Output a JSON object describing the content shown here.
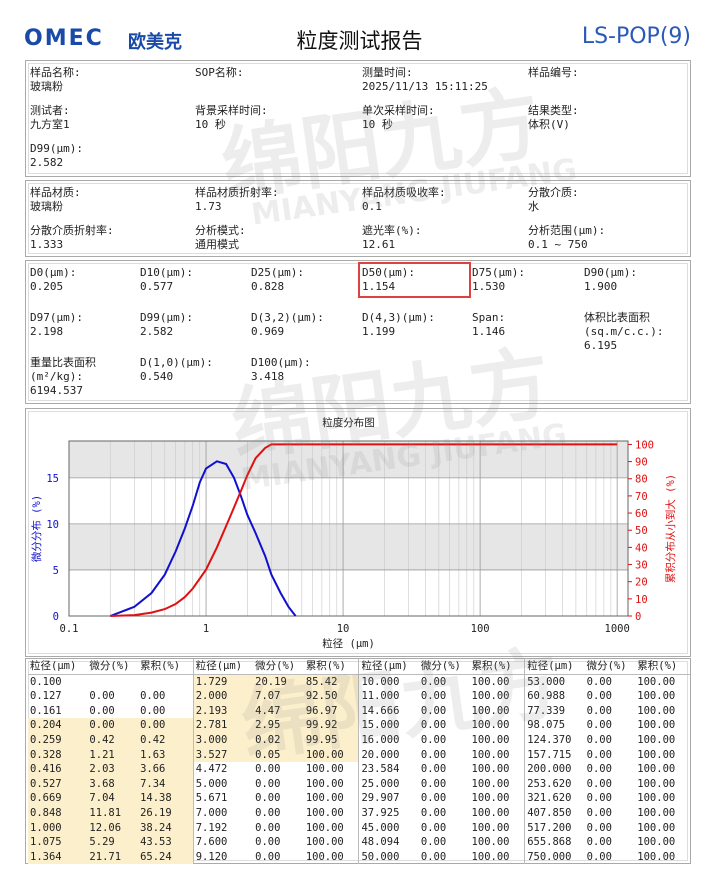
{
  "header": {
    "logo": "OMEC",
    "brand": "欧美克",
    "title": "粒度测试报告",
    "code": "LS-POP(9)"
  },
  "sections": [
    {
      "columns": 4,
      "rows": [
        [
          {
            "label": "样品名称:",
            "value": "玻璃粉"
          },
          {
            "label": "SOP名称:"
          },
          {
            "label": "测量时间:",
            "value": "2025/11/13 15:11:25"
          },
          {
            "label": "样品编号:"
          }
        ],
        [
          {
            "label": "测试者:",
            "value": "九方室1"
          },
          {
            "label": "背景采样时间:",
            "value": "10 秒"
          },
          {
            "label": "单次采样时间:",
            "value": "10 秒"
          },
          {
            "label": "结果类型:",
            "value": "体积(V)"
          }
        ],
        [
          {
            "label": "D99(μm):",
            "value": "2.582"
          }
        ]
      ]
    },
    {
      "columns": 4,
      "rows": [
        [
          {
            "label": "样品材质:",
            "value": "玻璃粉"
          },
          {
            "label": "样品材质折射率:",
            "value": "1.73"
          },
          {
            "label": "样品材质吸收率:",
            "value": "0.1"
          },
          {
            "label": "分散介质:",
            "value": "水"
          }
        ],
        [
          {
            "label": "分散介质折射率:",
            "value": "1.333"
          },
          {
            "label": "分析模式:",
            "value": "通用模式"
          },
          {
            "label": "遮光率(%):",
            "value": "12.61"
          },
          {
            "label": "分析范围(μm):",
            "value": "0.1 ~ 750"
          }
        ]
      ]
    },
    {
      "columns": 6,
      "rows": [
        [
          {
            "label": "D0(μm):",
            "value": "0.205"
          },
          {
            "label": "D10(μm):",
            "value": "0.577"
          },
          {
            "label": "D25(μm):",
            "value": "0.828"
          },
          {
            "label": "D50(μm):",
            "value": "1.154"
          },
          {
            "label": "D75(μm):",
            "value": "1.530"
          },
          {
            "label": "D90(μm):",
            "value": "1.900"
          }
        ],
        [
          {
            "label": "D97(μm):",
            "value": "2.198"
          },
          {
            "label": "D99(μm):",
            "value": "2.582"
          },
          {
            "label": "D(3,2)(μm):",
            "value": "0.969"
          },
          {
            "label": "D(4,3)(μm):",
            "value": "1.199"
          },
          {
            "label": "Span:",
            "value": "1.146"
          },
          {
            "label": "体积比表面积(sq.m/c.c.):",
            "value": "6.195"
          }
        ],
        [
          {
            "label": "重量比表面积(m²/kg):",
            "value": "6194.537"
          },
          {
            "label": "D(1,0)(μm):",
            "value": "0.540"
          },
          {
            "label": "D100(μm):",
            "value": "3.418"
          }
        ]
      ]
    }
  ],
  "chart_data": {
    "type": "line",
    "title": "粒度分布图",
    "xlabel": "粒径 (μm)",
    "ylabel": "微分分布 (%)",
    "y2label": "累积分布从小到大 (%)",
    "xlog": true,
    "xlim": [
      0.1,
      1200
    ],
    "xticks": [
      0.1,
      1,
      10,
      100,
      1000
    ],
    "ylim": [
      0,
      19
    ],
    "yticks": [
      0,
      5,
      10,
      15
    ],
    "y2lim": [
      0,
      102
    ],
    "y2ticks": [
      0,
      10,
      20,
      30,
      40,
      50,
      60,
      70,
      80,
      90,
      100
    ],
    "grid": true,
    "series": [
      {
        "name": "微分分布",
        "color": "#1010d0",
        "axis": "y",
        "x": [
          0.2,
          0.3,
          0.4,
          0.5,
          0.6,
          0.7,
          0.8,
          0.9,
          1.0,
          1.2,
          1.4,
          1.6,
          1.8,
          2.0,
          2.3,
          2.7,
          3.0,
          3.5,
          4.0,
          4.5
        ],
        "values": [
          0,
          1,
          2.5,
          4.5,
          7,
          9.5,
          12,
          14.5,
          16,
          16.8,
          16.5,
          15,
          13,
          11,
          9,
          6.5,
          4.5,
          2.5,
          1,
          0
        ]
      },
      {
        "name": "累积分布",
        "color": "#e01010",
        "axis": "y2",
        "x": [
          0.2,
          0.3,
          0.4,
          0.5,
          0.6,
          0.7,
          0.8,
          1.0,
          1.2,
          1.5,
          1.8,
          2.0,
          2.3,
          2.7,
          3.0,
          1000
        ],
        "values": [
          0,
          0.5,
          2,
          4,
          7,
          11,
          16,
          27,
          40,
          58,
          73,
          82,
          92,
          98,
          100,
          100
        ]
      }
    ]
  },
  "table": {
    "headers": [
      "粒径(μm)",
      "微分(%)",
      "累积(%)"
    ],
    "groups": [
      [
        [
          "0.100"
        ],
        [
          "0.127",
          "0.00",
          "0.00"
        ],
        [
          "0.161",
          "0.00",
          "0.00"
        ],
        [
          "0.204",
          "0.00",
          "0.00"
        ],
        [
          "0.259",
          "0.42",
          "0.42"
        ],
        [
          "0.328",
          "1.21",
          "1.63"
        ],
        [
          "0.416",
          "2.03",
          "3.66"
        ],
        [
          "0.527",
          "3.68",
          "7.34"
        ],
        [
          "0.669",
          "7.04",
          "14.38"
        ],
        [
          "0.848",
          "11.81",
          "26.19"
        ],
        [
          "1.000",
          "12.06",
          "38.24"
        ],
        [
          "1.075",
          "5.29",
          "43.53"
        ],
        [
          "1.364",
          "21.71",
          "65.24"
        ]
      ],
      [
        [
          "1.729",
          "20.19",
          "85.42"
        ],
        [
          "2.000",
          "7.07",
          "92.50"
        ],
        [
          "2.193",
          "4.47",
          "96.97"
        ],
        [
          "2.781",
          "2.95",
          "99.92"
        ],
        [
          "3.000",
          "0.02",
          "99.95"
        ],
        [
          "3.527",
          "0.05",
          "100.00"
        ],
        [
          "4.472",
          "0.00",
          "100.00"
        ],
        [
          "5.000",
          "0.00",
          "100.00"
        ],
        [
          "5.671",
          "0.00",
          "100.00"
        ],
        [
          "7.000",
          "0.00",
          "100.00"
        ],
        [
          "7.192",
          "0.00",
          "100.00"
        ],
        [
          "7.600",
          "0.00",
          "100.00"
        ],
        [
          "9.120",
          "0.00",
          "100.00"
        ]
      ],
      [
        [
          "10.000",
          "0.00",
          "100.00"
        ],
        [
          "11.000",
          "0.00",
          "100.00"
        ],
        [
          "14.666",
          "0.00",
          "100.00"
        ],
        [
          "15.000",
          "0.00",
          "100.00"
        ],
        [
          "16.000",
          "0.00",
          "100.00"
        ],
        [
          "20.000",
          "0.00",
          "100.00"
        ],
        [
          "23.584",
          "0.00",
          "100.00"
        ],
        [
          "25.000",
          "0.00",
          "100.00"
        ],
        [
          "29.907",
          "0.00",
          "100.00"
        ],
        [
          "37.925",
          "0.00",
          "100.00"
        ],
        [
          "45.000",
          "0.00",
          "100.00"
        ],
        [
          "48.094",
          "0.00",
          "100.00"
        ],
        [
          "50.000",
          "0.00",
          "100.00"
        ]
      ],
      [
        [
          "53.000",
          "0.00",
          "100.00"
        ],
        [
          "60.988",
          "0.00",
          "100.00"
        ],
        [
          "77.339",
          "0.00",
          "100.00"
        ],
        [
          "98.075",
          "0.00",
          "100.00"
        ],
        [
          "124.370",
          "0.00",
          "100.00"
        ],
        [
          "157.715",
          "0.00",
          "100.00"
        ],
        [
          "200.000",
          "0.00",
          "100.00"
        ],
        [
          "253.620",
          "0.00",
          "100.00"
        ],
        [
          "321.620",
          "0.00",
          "100.00"
        ],
        [
          "407.850",
          "0.00",
          "100.00"
        ],
        [
          "517.200",
          "0.00",
          "100.00"
        ],
        [
          "655.868",
          "0.00",
          "100.00"
        ],
        [
          "750.000",
          "0.00",
          "100.00"
        ]
      ]
    ]
  },
  "watermark": [
    "绵阳九方",
    "MIANYANG JIUFANG"
  ]
}
